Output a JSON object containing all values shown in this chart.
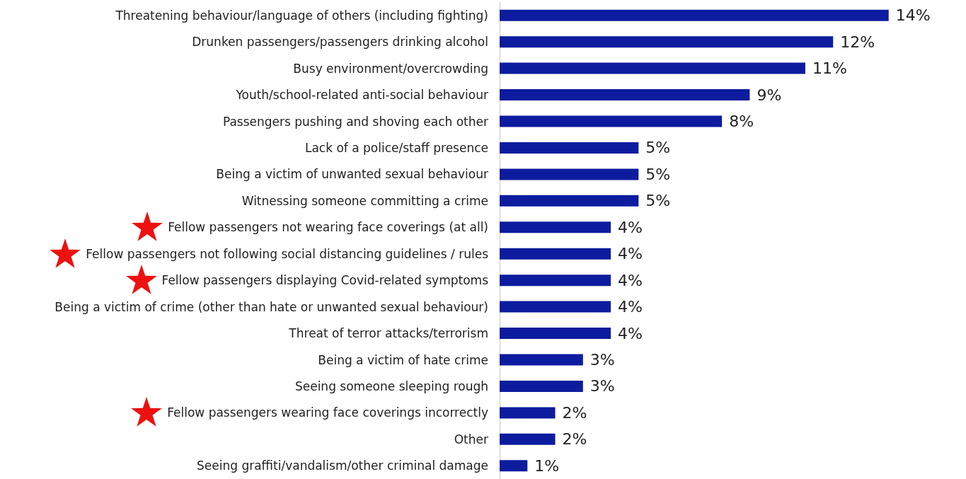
{
  "chart_data": {
    "type": "bar",
    "orientation": "horizontal",
    "categories": [
      "Threatening behaviour/language of others (including fighting)",
      "Drunken passengers/passengers drinking alcohol",
      "Busy environment/overcrowding",
      "Youth/school-related anti-social behaviour",
      "Passengers pushing and shoving each other",
      "Lack of a police/staff presence",
      "Being a victim of unwanted sexual behaviour",
      "Witnessing someone committing a crime",
      "Fellow passengers not wearing face coverings (at all)",
      "Fellow passengers not following social distancing guidelines / rules",
      "Fellow passengers displaying Covid-related symptoms",
      "Being a victim of crime (other than hate or unwanted sexual behaviour)",
      "Threat of terror attacks/terrorism",
      "Being a victim of hate crime",
      "Seeing someone sleeping rough",
      "Fellow passengers wearing face coverings incorrectly",
      "Other",
      "Seeing graffiti/vandalism/other criminal damage"
    ],
    "values": [
      14,
      12,
      11,
      9,
      8,
      5,
      5,
      5,
      4,
      4,
      4,
      4,
      4,
      3,
      3,
      2,
      2,
      1
    ],
    "value_labels": [
      "14%",
      "12%",
      "11%",
      "9%",
      "8%",
      "5%",
      "5%",
      "5%",
      "4%",
      "4%",
      "4%",
      "4%",
      "4%",
      "3%",
      "3%",
      "2%",
      "2%",
      "1%"
    ],
    "color": "#0d1c9e"
  }
}
